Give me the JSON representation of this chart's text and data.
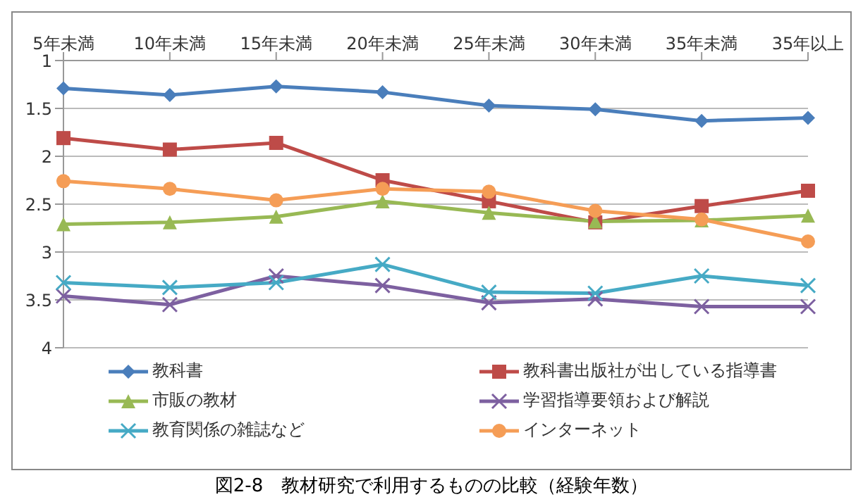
{
  "chart_data": {
    "type": "line",
    "title": "図2-8　教材研究で利用するものの比較（経験年数）",
    "categories": [
      "5年未満",
      "10年未満",
      "15年未満",
      "20年未満",
      "25年未満",
      "30年未満",
      "35年未満",
      "35年以上"
    ],
    "series": [
      {
        "name": "教科書",
        "color": "#4a7ebb",
        "marker": "diamond",
        "values": [
          1.29,
          1.36,
          1.27,
          1.33,
          1.47,
          1.51,
          1.63,
          1.6
        ]
      },
      {
        "name": "教科書出版社が出している指導書",
        "color": "#be4b48",
        "marker": "square",
        "values": [
          1.81,
          1.93,
          1.86,
          2.25,
          2.47,
          2.69,
          2.52,
          2.36
        ]
      },
      {
        "name": "市販の教材",
        "color": "#98b954",
        "marker": "triangle",
        "values": [
          2.71,
          2.69,
          2.63,
          2.47,
          2.59,
          2.68,
          2.67,
          2.62
        ]
      },
      {
        "name": "学習指導要領および解説",
        "color": "#7d60a0",
        "marker": "cross",
        "values": [
          3.46,
          3.55,
          3.25,
          3.35,
          3.53,
          3.49,
          3.57,
          3.57
        ]
      },
      {
        "name": "教育関係の雑誌など",
        "color": "#46aac5",
        "marker": "cross",
        "values": [
          3.32,
          3.37,
          3.32,
          3.13,
          3.42,
          3.43,
          3.25,
          3.35
        ]
      },
      {
        "name": "インターネット",
        "color": "#f59d56",
        "marker": "circle",
        "values": [
          2.26,
          2.34,
          2.46,
          2.34,
          2.37,
          2.57,
          2.66,
          2.89
        ]
      }
    ],
    "ylim": [
      4,
      1
    ],
    "yticks": [
      1,
      1.5,
      2,
      2.5,
      3,
      3.5,
      4
    ],
    "grid": "y",
    "legend": "bottom",
    "line_style": "solid"
  }
}
